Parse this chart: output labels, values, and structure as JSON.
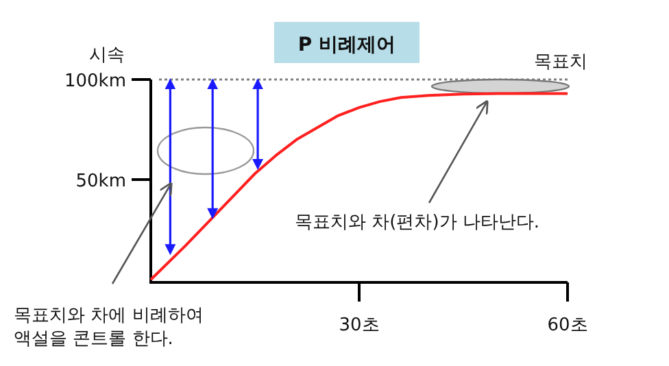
{
  "chart_data": {
    "type": "line",
    "title": "P 비례제어",
    "ylabel": "시속",
    "xlim": [
      0,
      60
    ],
    "ylim": [
      0,
      100
    ],
    "xticks": [
      {
        "value": 30,
        "label": "30초"
      },
      {
        "value": 60,
        "label": "60초"
      }
    ],
    "yticks": [
      {
        "value": 50,
        "label": "50km"
      },
      {
        "value": 100,
        "label": "100km"
      }
    ],
    "ref_lines": [
      {
        "axis": "y",
        "value": 100,
        "label": "목표치",
        "color": "#808080",
        "line_style": "dotted"
      }
    ],
    "series": [
      {
        "color": "#ff2020",
        "x": [
          0,
          5,
          10,
          15,
          18,
          21,
          24,
          27,
          30,
          33,
          36,
          40,
          45,
          50,
          55,
          60
        ],
        "values": [
          0,
          17,
          35,
          53,
          62,
          70,
          76,
          82,
          86,
          89,
          91,
          92,
          92.7,
          93,
          93,
          93
        ]
      },
      {
        "type": "scatter",
        "marker": "triangle",
        "color": "#1a1aff",
        "x": [
          2.8,
          8.9,
          15.4
        ],
        "values": [
          15,
          33,
          57.5
        ],
        "errors": [
          [
            15,
            100
          ],
          [
            33,
            100
          ],
          [
            57.5,
            100
          ]
        ]
      }
    ],
    "annotations": [
      {
        "text": "목표치와 차에 비례하여\n액설을 콘트롤 한다.",
        "x": 2.5,
        "y": 52
      },
      {
        "text": "목표치와 차(편차)가 나타난다.",
        "x": 48,
        "y": 93
      }
    ]
  }
}
